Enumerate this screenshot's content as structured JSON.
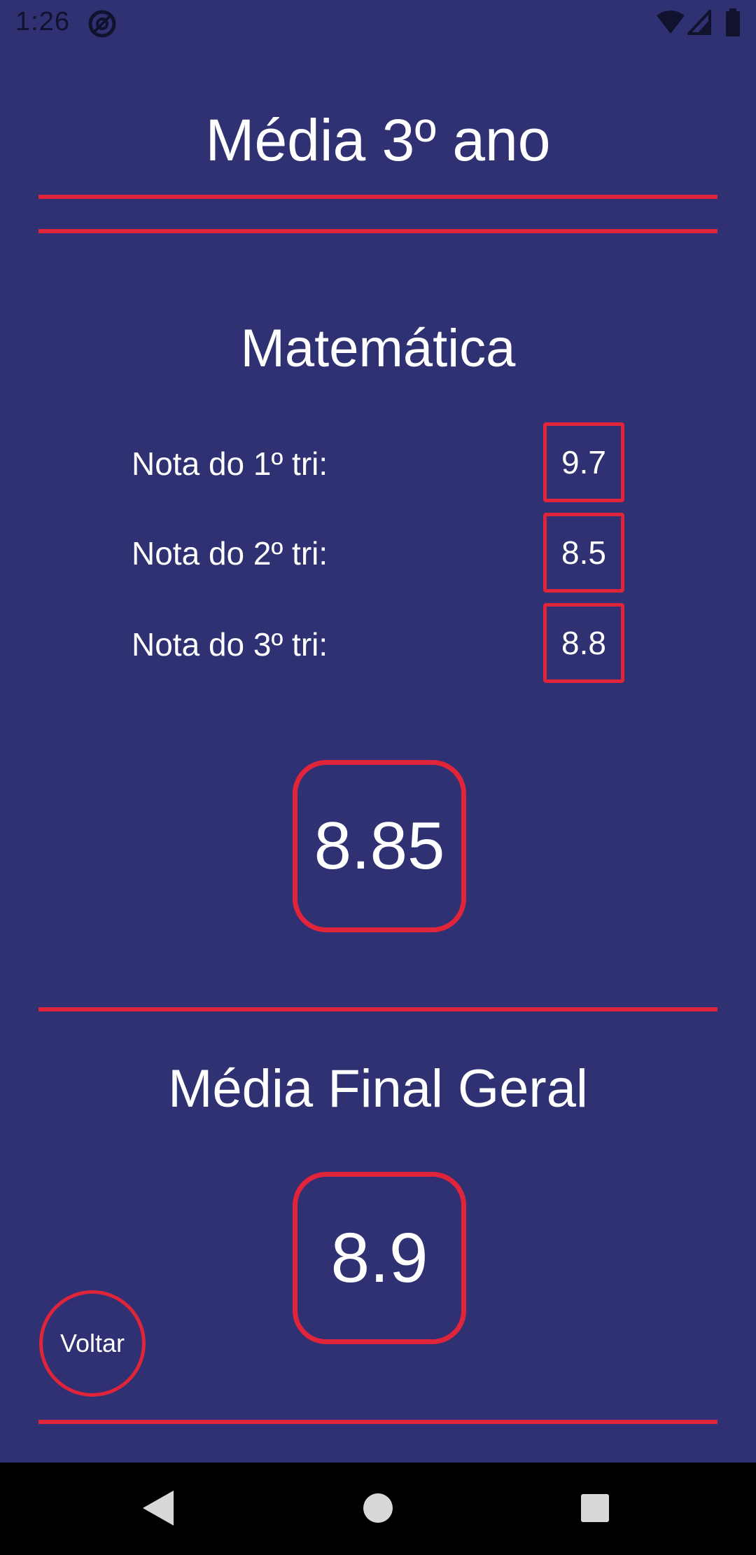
{
  "status_bar": {
    "time": "1:26",
    "icons": [
      "at-sign-icon",
      "wifi-icon",
      "signal-icon",
      "battery-icon"
    ]
  },
  "page": {
    "title": "Média 3º ano"
  },
  "subject": {
    "name": "Matemática",
    "grades": [
      {
        "label": "Nota do 1º tri:",
        "value": "9.7"
      },
      {
        "label": "Nota do 2º tri:",
        "value": "8.5"
      },
      {
        "label": "Nota do 3º tri:",
        "value": "8.8"
      }
    ],
    "average": "8.85"
  },
  "final": {
    "title": "Média Final Geral",
    "value": "8.9"
  },
  "buttons": {
    "back_label": "Voltar"
  },
  "nav_bar": {
    "icons": [
      "back-triangle-icon",
      "home-circle-icon",
      "recents-square-icon"
    ]
  },
  "colors": {
    "background": "#2f3173",
    "accent": "#e0243a",
    "text": "#ffffff"
  }
}
